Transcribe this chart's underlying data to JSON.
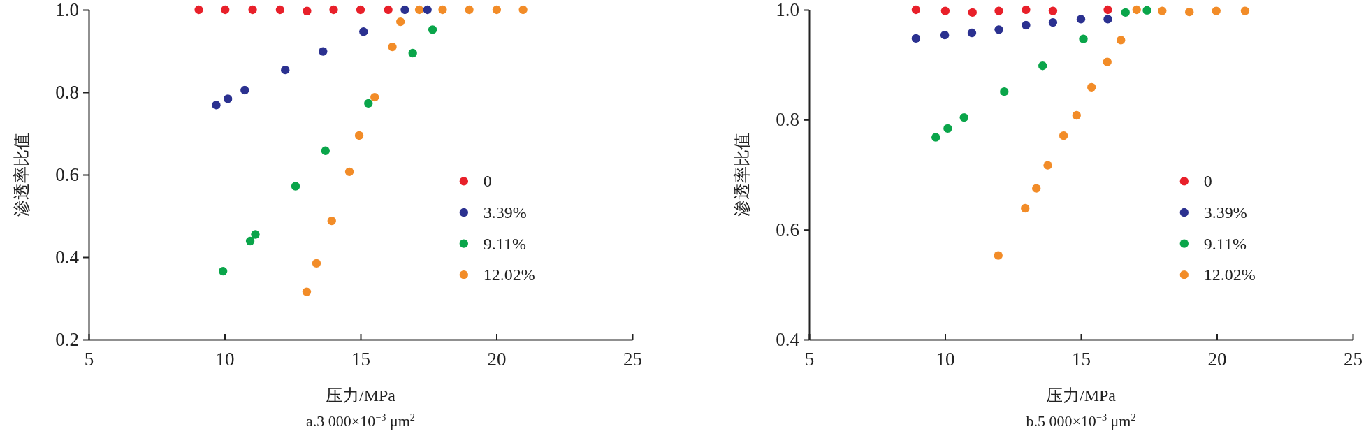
{
  "chart_data": [
    {
      "type": "scatter",
      "title": "a.3 000×10$^{−3}$ μm$^{2}$",
      "xlabel": "压力/MPa",
      "ylabel": "渗透率比值",
      "xlim": [
        5,
        25
      ],
      "xticks": [
        5,
        10,
        15,
        20,
        25
      ],
      "ylim": [
        0.2,
        1.0
      ],
      "yticks": [
        {
          "value": 0.2,
          "label": "0.2"
        },
        {
          "value": 0.4,
          "label": "0.4"
        },
        {
          "value": 0.6,
          "label": "0.6"
        },
        {
          "value": 0.8,
          "label": "0.8"
        },
        {
          "value": 1.0,
          "label": "1.0"
        }
      ],
      "grid": false,
      "legend": "right",
      "marker": "circle",
      "series": [
        {
          "name": "0",
          "color": "#e8202a",
          "x": [
            9.05,
            10.02,
            11.03,
            12.04,
            13.03,
            14.01,
            15.0,
            16.02
          ],
          "values": [
            1.0,
            1.0,
            1.0,
            1.0,
            0.997,
            1.0,
            1.0,
            1.0
          ]
        },
        {
          "name": "3.39%",
          "color": "#2b3190",
          "x": [
            9.69,
            10.12,
            10.74,
            12.23,
            13.62,
            15.11,
            16.63,
            17.46
          ],
          "values": [
            0.769,
            0.784,
            0.805,
            0.854,
            0.899,
            0.947,
            1.0,
            1.0
          ]
        },
        {
          "name": "9.11%",
          "color": "#0aa54a",
          "x": [
            9.94,
            10.94,
            11.13,
            12.61,
            13.71,
            15.29,
            16.92,
            17.65
          ],
          "values": [
            0.366,
            0.439,
            0.455,
            0.572,
            0.658,
            0.773,
            0.895,
            0.952
          ]
        },
        {
          "name": "12.02%",
          "color": "#f28c28",
          "x": [
            13.02,
            13.38,
            13.94,
            14.59,
            14.95,
            15.52,
            16.17,
            16.47,
            17.16,
            18.02,
            19.0,
            20.01,
            20.98
          ],
          "values": [
            0.316,
            0.385,
            0.488,
            0.607,
            0.695,
            0.788,
            0.91,
            0.971,
            1.0,
            1.0,
            1.0,
            1.0,
            1.0
          ]
        }
      ]
    },
    {
      "type": "scatter",
      "title": "b.5 000×10$^{−3}$ μm$^{2}$",
      "xlabel": "压力/MPa",
      "ylabel": "渗透率比值",
      "xlim": [
        5,
        25
      ],
      "xticks": [
        5,
        10,
        15,
        20,
        25
      ],
      "ylim": [
        0.4,
        1.0
      ],
      "yticks": [
        {
          "value": 0.4,
          "label": "0.4"
        },
        {
          "value": 0.6,
          "label": "0.6"
        },
        {
          "value": 0.8,
          "label": "0.8"
        },
        {
          "value": 1.0,
          "label": "1.0"
        }
      ],
      "grid": false,
      "legend": "right",
      "marker": "circle",
      "series": [
        {
          "name": "0",
          "color": "#e8202a",
          "x": [
            8.93,
            10.01,
            11.01,
            11.98,
            12.98,
            13.97,
            15.99
          ],
          "values": [
            1.0,
            0.998,
            0.995,
            0.998,
            1.0,
            0.998,
            1.0
          ]
        },
        {
          "name": "3.39%",
          "color": "#2b3190",
          "x": [
            8.93,
            9.99,
            10.99,
            11.98,
            12.98,
            13.97,
            15.0,
            15.99
          ],
          "values": [
            0.948,
            0.954,
            0.958,
            0.964,
            0.972,
            0.977,
            0.983,
            0.983
          ]
        },
        {
          "name": "9.11%",
          "color": "#0aa54a",
          "x": [
            9.66,
            10.1,
            10.7,
            12.18,
            13.59,
            15.09,
            16.64,
            17.43
          ],
          "values": [
            0.768,
            0.784,
            0.804,
            0.851,
            0.898,
            0.947,
            0.995,
            0.999
          ]
        },
        {
          "name": "12.02%",
          "color": "#f28c28",
          "x": [
            11.96,
            12.95,
            13.36,
            13.78,
            14.36,
            14.84,
            15.39,
            15.97,
            16.47,
            17.05,
            17.99,
            18.99,
            19.98,
            21.04
          ],
          "values": [
            0.553,
            0.639,
            0.675,
            0.717,
            0.771,
            0.808,
            0.859,
            0.905,
            0.945,
            1.0,
            0.998,
            0.996,
            0.998,
            0.998
          ]
        }
      ]
    }
  ]
}
